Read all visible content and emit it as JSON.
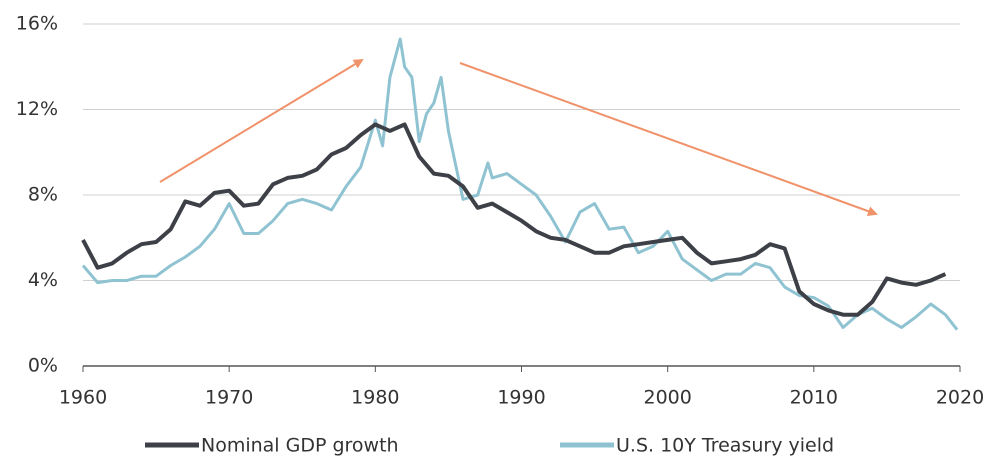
{
  "chart_data": {
    "type": "line",
    "xlim": [
      1960,
      2020
    ],
    "xticks": [
      1960,
      1970,
      1980,
      1990,
      2000,
      2010,
      2020
    ],
    "ylim": [
      0,
      16
    ],
    "yticks": [
      {
        "value": 0,
        "label": "0%"
      },
      {
        "value": 4,
        "label": "4%"
      },
      {
        "value": 8,
        "label": "8%"
      },
      {
        "value": 12,
        "label": "12%"
      },
      {
        "value": 16,
        "label": "16%"
      }
    ],
    "grid": true,
    "legend": "bottom",
    "series": [
      {
        "name": "Nominal GDP growth",
        "color": "#3d4147",
        "x": [
          1960,
          1961,
          1962,
          1963,
          1964,
          1965,
          1966,
          1967,
          1968,
          1969,
          1970,
          1971,
          1972,
          1973,
          1974,
          1975,
          1976,
          1977,
          1978,
          1979,
          1980,
          1981,
          1982,
          1983,
          1984,
          1985,
          1986,
          1987,
          1988,
          1989,
          1990,
          1991,
          1992,
          1993,
          1994,
          1995,
          1996,
          1997,
          1998,
          1999,
          2000,
          2001,
          2002,
          2003,
          2004,
          2005,
          2006,
          2007,
          2008,
          2009,
          2010,
          2011,
          2012,
          2013,
          2014,
          2015,
          2016,
          2017,
          2018,
          2019
        ],
        "values": [
          5.9,
          4.6,
          4.8,
          5.3,
          5.7,
          5.8,
          6.4,
          7.7,
          7.5,
          8.1,
          8.2,
          7.5,
          7.6,
          8.5,
          8.8,
          8.9,
          9.2,
          9.9,
          10.2,
          10.8,
          11.3,
          11.0,
          11.3,
          9.8,
          9.0,
          8.9,
          8.4,
          7.4,
          7.6,
          7.2,
          6.8,
          6.3,
          6.0,
          5.9,
          5.6,
          5.3,
          5.3,
          5.6,
          5.7,
          5.8,
          5.9,
          6.0,
          5.3,
          4.8,
          4.9,
          5.0,
          5.2,
          5.7,
          5.5,
          3.5,
          2.9,
          2.6,
          2.4,
          2.4,
          3.0,
          4.1,
          3.9,
          3.8,
          4.0,
          4.3
        ]
      },
      {
        "name": "U.S. 10Y Treasury yield",
        "color": "#8fc3d2",
        "x": [
          1960,
          1961,
          1962,
          1963,
          1964,
          1965,
          1966,
          1967,
          1968,
          1969,
          1970,
          1971,
          1972,
          1973,
          1974,
          1975,
          1976,
          1977,
          1978,
          1979,
          1980,
          1980.5,
          1981,
          1981.7,
          1982,
          1982.5,
          1983,
          1983.5,
          1984,
          1984.5,
          1985,
          1986,
          1987,
          1987.7,
          1988,
          1989,
          1990,
          1991,
          1992,
          1993,
          1994,
          1995,
          1996,
          1997,
          1998,
          1999,
          2000,
          2001,
          2002,
          2003,
          2004,
          2005,
          2006,
          2007,
          2008,
          2009,
          2010,
          2011,
          2012,
          2013,
          2014,
          2015,
          2016,
          2017,
          2018,
          2019,
          2019.8
        ],
        "values": [
          4.7,
          3.9,
          4.0,
          4.0,
          4.2,
          4.2,
          4.7,
          5.1,
          5.6,
          6.4,
          7.6,
          6.2,
          6.2,
          6.8,
          7.6,
          7.8,
          7.6,
          7.3,
          8.4,
          9.3,
          11.5,
          10.3,
          13.5,
          15.3,
          14.0,
          13.5,
          10.5,
          11.8,
          12.3,
          13.5,
          11.0,
          7.8,
          8.0,
          9.5,
          8.8,
          9.0,
          8.5,
          8.0,
          7.0,
          5.8,
          7.2,
          7.6,
          6.4,
          6.5,
          5.3,
          5.6,
          6.3,
          5.0,
          4.5,
          4.0,
          4.3,
          4.3,
          4.8,
          4.6,
          3.7,
          3.3,
          3.2,
          2.8,
          1.8,
          2.4,
          2.7,
          2.2,
          1.8,
          2.3,
          2.9,
          2.4,
          1.7
        ]
      }
    ]
  }
}
